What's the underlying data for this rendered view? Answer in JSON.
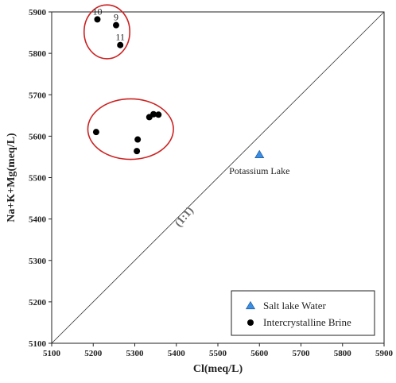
{
  "chart_data": {
    "type": "scatter",
    "xlabel": "Cl(meq/L)",
    "ylabel": "Na+K+Mg(meq/L)",
    "xlim": [
      5100,
      5900
    ],
    "ylim": [
      5100,
      5900
    ],
    "xticks": [
      5100,
      5200,
      5300,
      5400,
      5500,
      5600,
      5700,
      5800,
      5900
    ],
    "yticks": [
      5100,
      5200,
      5300,
      5400,
      5500,
      5600,
      5700,
      5800,
      5900
    ],
    "grid": false,
    "legend_position": "bottom-right",
    "reference_line": {
      "label": "(1:1)",
      "slope": 1,
      "intercept": 0
    },
    "series": [
      {
        "name": "Salt lake Water",
        "marker": "triangle",
        "color": "#3a8ee6",
        "points": [
          {
            "x": 5600,
            "y": 5555,
            "label": "Potassium Lake"
          }
        ]
      },
      {
        "name": "Intercrystalline Brine",
        "marker": "circle",
        "color": "#000000",
        "points": [
          {
            "x": 5210,
            "y": 5882,
            "label": "10"
          },
          {
            "x": 5255,
            "y": 5868,
            "label": "9"
          },
          {
            "x": 5265,
            "y": 5820,
            "label": "11"
          },
          {
            "x": 5207,
            "y": 5610
          },
          {
            "x": 5307,
            "y": 5592
          },
          {
            "x": 5305,
            "y": 5564
          },
          {
            "x": 5335,
            "y": 5646
          },
          {
            "x": 5345,
            "y": 5653
          },
          {
            "x": 5357,
            "y": 5652
          }
        ]
      }
    ],
    "groupings": [
      {
        "shape": "ellipse",
        "color": "#cc2222",
        "cx": 5233,
        "cy": 5852,
        "rx": 55,
        "ry": 65
      },
      {
        "shape": "ellipse",
        "color": "#cc2222",
        "cx": 5290,
        "cy": 5617,
        "rx": 103,
        "ry": 73
      }
    ]
  }
}
